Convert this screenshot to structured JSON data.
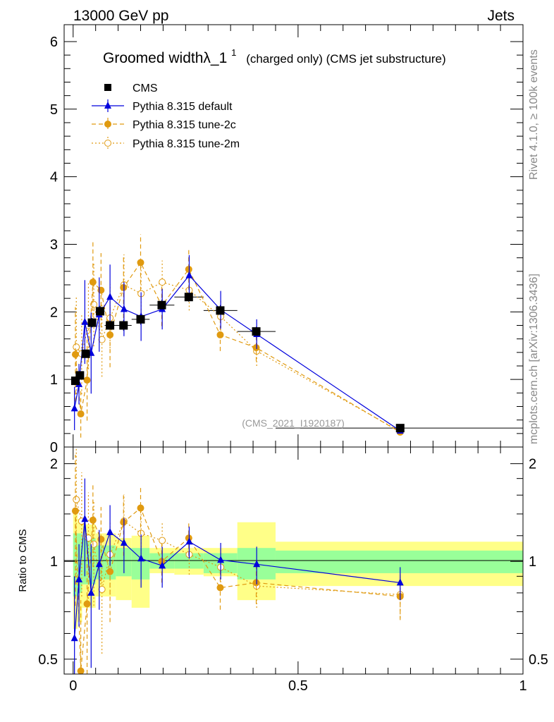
{
  "header": {
    "energy_label": "13000 GeV pp",
    "category_label": "Jets",
    "side_rivet": "Rivet 4.1.0, ≥ 100k events",
    "side_mcplots": "mcplots.cern.ch [arXiv:1306.3436]",
    "analysis_id": "(CMS_2021_I1920187)"
  },
  "chart_data": {
    "type": "scatter",
    "title_main": "Groomed widthλ_1",
    "title_sup": "1",
    "title_tail": "(charged only) (CMS jet substructure)",
    "ylabel_ratio": "Ratio to CMS",
    "xlim": [
      -0.02,
      1.0
    ],
    "ylim_top": [
      0,
      6.25
    ],
    "ylim_ratio_log": [
      0.45,
      2.25
    ],
    "x_ticks": [
      0,
      0.5,
      1
    ],
    "x_tick_labels": [
      "0",
      "0.5",
      "1"
    ],
    "top_y_ticks": [
      0,
      1,
      2,
      3,
      4,
      5,
      6
    ],
    "top_y_tick_labels": [
      "0",
      "1",
      "2",
      "3",
      "4",
      "5",
      "6"
    ],
    "ratio_y_ticks": [
      0.5,
      1,
      2
    ],
    "ratio_y_tick_labels": [
      "0.5",
      "1",
      "2"
    ],
    "legend": [
      {
        "label": "CMS",
        "color": "#000000",
        "marker": "square",
        "line": "none"
      },
      {
        "label": "Pythia 8.315 default",
        "color": "#0000dd",
        "marker": "triangle",
        "line": "solid"
      },
      {
        "label": "Pythia 8.315 tune-2c",
        "color": "#e09a10",
        "marker": "circle",
        "line": "dashed"
      },
      {
        "label": "Pythia 8.315 tune-2m",
        "color": "#e09a10",
        "marker": "open-circle",
        "line": "dotted"
      }
    ],
    "cms": {
      "x": [
        0.005,
        0.015,
        0.028,
        0.042,
        0.06,
        0.082,
        0.112,
        0.15,
        0.197,
        0.257,
        0.327,
        0.407,
        0.727
      ],
      "xlo": [
        0.0,
        0.01,
        0.02,
        0.035,
        0.05,
        0.07,
        0.095,
        0.13,
        0.17,
        0.225,
        0.29,
        0.365,
        0.45
      ],
      "xhi": [
        0.01,
        0.02,
        0.035,
        0.05,
        0.07,
        0.095,
        0.13,
        0.17,
        0.225,
        0.29,
        0.365,
        0.45,
        1.0
      ],
      "y": [
        0.98,
        1.06,
        1.38,
        1.84,
        2.01,
        1.8,
        1.8,
        1.89,
        2.1,
        2.22,
        2.02,
        1.71,
        0.28
      ],
      "err": [
        0.04,
        0.05,
        0.06,
        0.07,
        0.08,
        0.07,
        0.08,
        0.08,
        0.08,
        0.07,
        0.08,
        0.07,
        0.02
      ]
    },
    "ratio_bands": {
      "green": [
        [
          0.78,
          1.22
        ],
        [
          0.8,
          1.22
        ],
        [
          0.85,
          1.18
        ],
        [
          0.85,
          1.18
        ],
        [
          0.88,
          1.12
        ],
        [
          0.88,
          1.12
        ],
        [
          0.9,
          1.1
        ],
        [
          0.88,
          1.1
        ],
        [
          0.95,
          1.06
        ],
        [
          0.95,
          1.06
        ],
        [
          0.92,
          1.06
        ],
        [
          0.88,
          1.1
        ],
        [
          0.92,
          1.08
        ]
      ],
      "yellow": [
        [
          0.62,
          1.4
        ],
        [
          0.65,
          1.35
        ],
        [
          0.72,
          1.3
        ],
        [
          0.72,
          1.3
        ],
        [
          0.78,
          1.22
        ],
        [
          0.78,
          1.22
        ],
        [
          0.76,
          1.18
        ],
        [
          0.72,
          1.2
        ],
        [
          0.92,
          1.1
        ],
        [
          0.91,
          1.1
        ],
        [
          0.9,
          1.1
        ],
        [
          0.76,
          1.32
        ],
        [
          0.84,
          1.15
        ]
      ]
    },
    "series": [
      {
        "name": "Pythia 8.315 default",
        "x": [
          0.003,
          0.013,
          0.026,
          0.04,
          0.058,
          0.082,
          0.113,
          0.151,
          0.198,
          0.258,
          0.328,
          0.408,
          0.727
        ],
        "y": [
          0.57,
          0.93,
          1.85,
          1.39,
          1.96,
          2.22,
          2.04,
          1.93,
          2.04,
          2.54,
          2.03,
          1.67,
          0.24
        ],
        "err": [
          0.32,
          0.3,
          0.62,
          0.6,
          0.55,
          0.48,
          0.4,
          0.36,
          0.3,
          0.3,
          0.28,
          0.22,
          0.03
        ],
        "ratio": [
          0.58,
          0.88,
          1.35,
          0.8,
          0.98,
          1.23,
          1.14,
          1.02,
          0.97,
          1.15,
          1.01,
          0.98,
          0.86
        ],
        "ratio_err": [
          0.32,
          0.25,
          0.45,
          0.33,
          0.27,
          0.26,
          0.22,
          0.19,
          0.14,
          0.13,
          0.13,
          0.13,
          0.1
        ]
      },
      {
        "name": "Pythia 8.315 tune-2c",
        "x": [
          0.005,
          0.017,
          0.031,
          0.044,
          0.062,
          0.082,
          0.112,
          0.15,
          0.197,
          0.257,
          0.327,
          0.407,
          0.727
        ],
        "y": [
          1.37,
          0.49,
          0.99,
          2.44,
          2.32,
          1.66,
          2.36,
          2.73,
          2.09,
          2.63,
          1.66,
          1.47,
          0.22
        ],
        "err": [
          0.7,
          0.35,
          0.6,
          0.62,
          0.55,
          0.48,
          0.45,
          0.42,
          0.3,
          0.3,
          0.24,
          0.2,
          0.03
        ],
        "ratio": [
          1.43,
          0.46,
          0.74,
          1.34,
          1.17,
          0.93,
          1.32,
          1.46,
          1.0,
          1.18,
          0.83,
          0.86,
          0.78
        ],
        "ratio_err": [
          0.7,
          0.3,
          0.4,
          0.38,
          0.3,
          0.28,
          0.28,
          0.25,
          0.14,
          0.14,
          0.12,
          0.12,
          0.12
        ]
      },
      {
        "name": "Pythia 8.315 tune-2m",
        "x": [
          0.007,
          0.019,
          0.034,
          0.046,
          0.064,
          0.082,
          0.113,
          0.151,
          0.198,
          0.258,
          0.328,
          0.408,
          0.727
        ],
        "y": [
          1.48,
          1.38,
          1.8,
          2.11,
          1.59,
          1.91,
          2.4,
          2.27,
          2.44,
          2.32,
          1.93,
          1.42,
          0.23
        ],
        "err": [
          0.75,
          0.6,
          0.65,
          0.62,
          0.55,
          0.5,
          0.45,
          0.4,
          0.32,
          0.3,
          0.26,
          0.22,
          0.03
        ],
        "ratio": [
          1.55,
          1.33,
          1.18,
          1.13,
          0.82,
          1.05,
          1.33,
          1.22,
          1.16,
          1.05,
          0.96,
          0.84,
          0.79
        ],
        "ratio_err": [
          0.7,
          0.55,
          0.45,
          0.4,
          0.3,
          0.28,
          0.28,
          0.22,
          0.15,
          0.14,
          0.12,
          0.12,
          0.12
        ]
      }
    ]
  }
}
